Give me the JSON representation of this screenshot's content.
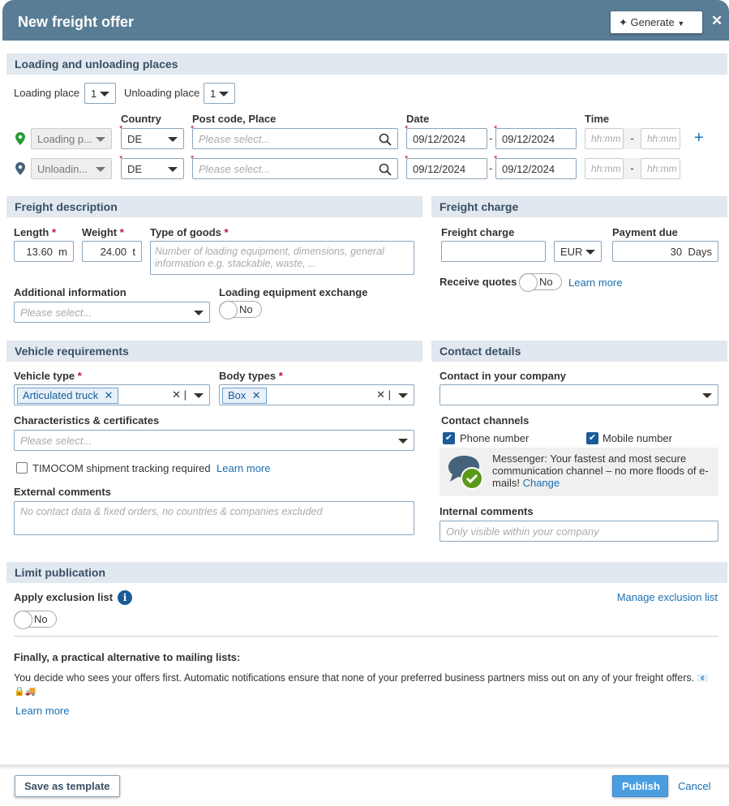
{
  "header": {
    "title": "New freight offer",
    "generate_label": "Generate",
    "close_label": "✕"
  },
  "places": {
    "section": "Loading and unloading places",
    "loading_place_label": "Loading place",
    "loading_place_count": "1",
    "unloading_place_label": "Unloading place",
    "unloading_place_count": "1",
    "col_country": "Country",
    "col_post": "Post code, Place",
    "col_date": "Date",
    "col_time": "Time",
    "rows": [
      {
        "type": "Loading p...",
        "country": "DE",
        "post_placeholder": "Please select...",
        "date_from": "09/12/2024",
        "date_to": "09/12/2024",
        "time_placeholder": "hh:mm"
      },
      {
        "type": "Unloadin...",
        "country": "DE",
        "post_placeholder": "Please select...",
        "date_from": "09/12/2024",
        "date_to": "09/12/2024",
        "time_placeholder": "hh:mm"
      }
    ],
    "add_label": "+"
  },
  "freight": {
    "section": "Freight description",
    "length_label": "Length",
    "length_value": "13.60",
    "length_unit": "m",
    "weight_label": "Weight",
    "weight_value": "24.00",
    "weight_unit": "t",
    "goods_label": "Type of goods",
    "goods_placeholder": "Number of loading equipment, dimensions, general information e.g. stackable, waste, ...",
    "additional_label": "Additional information",
    "additional_placeholder": "Please select...",
    "exchange_label": "Loading equipment exchange",
    "exchange_value": "No"
  },
  "charge": {
    "section": "Freight charge",
    "charge_label": "Freight charge",
    "charge_value": "",
    "currency": "EUR",
    "payment_label": "Payment due",
    "payment_value": "30",
    "payment_unit": "Days",
    "quotes_label": "Receive quotes",
    "quotes_value": "No",
    "learn_more": "Learn more"
  },
  "vehicle": {
    "section": "Vehicle requirements",
    "type_label": "Vehicle type",
    "type_chip": "Articulated truck",
    "body_label": "Body types",
    "body_chip": "Box",
    "chars_label": "Characteristics & certificates",
    "chars_placeholder": "Please select...",
    "tracking_label": "TIMOCOM shipment tracking required",
    "tracking_learn": "Learn more",
    "ext_label": "External comments",
    "ext_placeholder": "No contact data & fixed orders, no countries & companies excluded"
  },
  "contact": {
    "section": "Contact details",
    "company_label": "Contact in your company",
    "company_value": "",
    "channels_label": "Contact channels",
    "phone_label": "Phone number",
    "phone_checked": true,
    "mobile_label": "Mobile number",
    "mobile_checked": true,
    "messenger_text": "Messenger: Your fastest and most secure communication channel – no more floods of e-mails!",
    "messenger_change": "Change",
    "internal_label": "Internal comments",
    "internal_placeholder": "Only visible within your company"
  },
  "limit": {
    "section": "Limit publication",
    "exclusion_label": "Apply exclusion list",
    "manage_label": "Manage exclusion list",
    "exclusion_value": "No",
    "promo_title": "Finally, a practical alternative to mailing lists:",
    "promo_text": "You decide who sees your offers first. Automatic notifications ensure that none of your preferred business partners miss out on any of your freight offers.",
    "promo_emoji": "📧🔒🚚",
    "learn_more": "Learn more"
  },
  "footer": {
    "save_template": "Save as template",
    "publish": "Publish",
    "cancel": "Cancel"
  },
  "colors": {
    "header": "#5a7d96",
    "section": "#e1e8ef",
    "link": "#1a6fb0",
    "primary": "#4a9ee0"
  }
}
